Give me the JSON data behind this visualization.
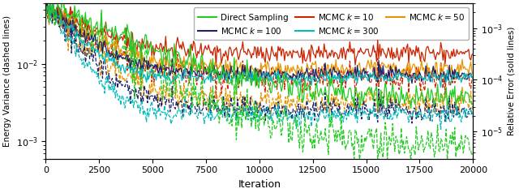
{
  "xlabel": "Iteration",
  "ylabel_left": "Energy Variance (dashed lines)",
  "ylabel_right": "Relative Error (solid lines)",
  "xlim": [
    0,
    20000
  ],
  "ylim_left": [
    0.0006,
    0.06
  ],
  "ylim_right": [
    3e-06,
    0.003
  ],
  "x_ticks": [
    0,
    2500,
    5000,
    7500,
    10000,
    12500,
    15000,
    17500,
    20000
  ],
  "colors": {
    "direct_sampling": "#22CC22",
    "mcmc_k300": "#00BBBB",
    "mcmc_k100": "#1C2366",
    "mcmc_k50": "#E69500",
    "mcmc_k10": "#CC2200"
  },
  "legend_entries_row1": [
    {
      "label": "Direct Sampling",
      "color": "#22CC22"
    },
    {
      "label": "MCMC $k=100$",
      "color": "#1C2366"
    },
    {
      "label": "MCMC $k=10$",
      "color": "#CC2200"
    }
  ],
  "legend_entries_row2": [
    {
      "label": "MCMC $k=300$",
      "color": "#00BBBB"
    },
    {
      "label": "MCMC $k=50$",
      "color": "#E69500"
    }
  ],
  "n_iters": 400,
  "seed": 7
}
